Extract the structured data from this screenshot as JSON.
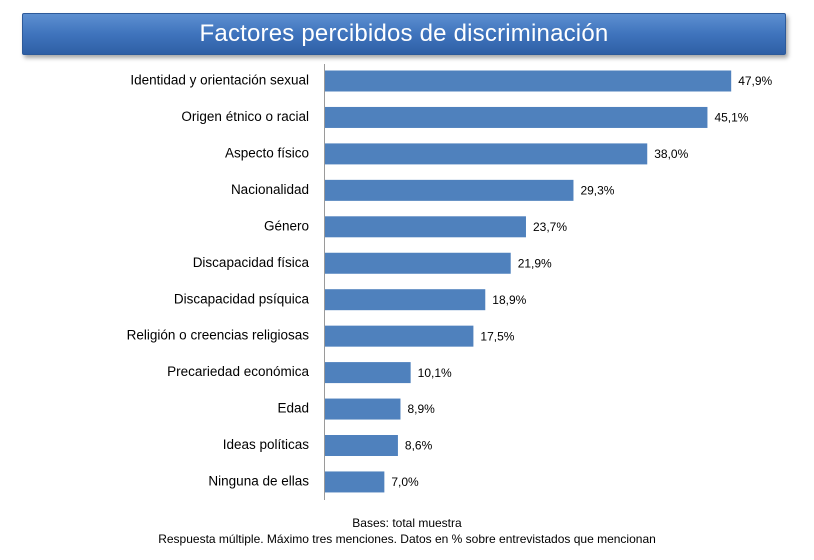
{
  "colors": {
    "bar": "#4f81bd",
    "banner": "#3f74bd",
    "text": "#000000"
  },
  "chart_data": {
    "type": "bar",
    "orientation": "horizontal",
    "title": "Factores percibidos de discriminación",
    "categories": [
      "Identidad y orientación sexual",
      "Origen étnico o racial",
      "Aspecto físico",
      "Nacionalidad",
      "Género",
      "Discapacidad física",
      "Discapacidad psíquica",
      "Religión o creencias religiosas",
      "Precariedad económica",
      "Edad",
      "Ideas políticas",
      "Ninguna de ellas"
    ],
    "values": [
      47.9,
      45.1,
      38.0,
      29.3,
      23.7,
      21.9,
      18.9,
      17.5,
      10.1,
      8.9,
      8.6,
      7.0
    ],
    "value_labels": [
      "47,9%",
      "45,1%",
      "38,0%",
      "29,3%",
      "23,7%",
      "21,9%",
      "18,9%",
      "17,5%",
      "10,1%",
      "8,9%",
      "8,6%",
      "7,0%"
    ],
    "xlim": [
      0,
      50
    ],
    "grid": false,
    "legend": "none"
  },
  "footnote": {
    "line1": "Bases: total muestra",
    "line2": "Respuesta múltiple. Máximo tres menciones. Datos en % sobre entrevistados que mencionan"
  }
}
